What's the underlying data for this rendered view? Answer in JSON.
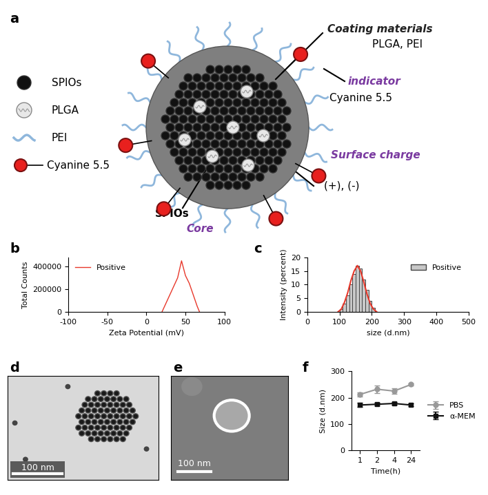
{
  "diagram": {
    "panel_label": "a",
    "legend": [
      {
        "label": "SPIOs"
      },
      {
        "label": "PLGA"
      },
      {
        "label": "PEI"
      },
      {
        "label": "Cyanine 5.5"
      }
    ],
    "annotations": [
      {
        "title": "Coating materials",
        "text": "PLGA, PEI"
      },
      {
        "title": "indicator",
        "text": "Cyanine 5.5"
      },
      {
        "title": "Surface charge",
        "text": "(+), (-)"
      },
      {
        "title": "Core",
        "text": "SPIOs"
      }
    ]
  },
  "chart_data": [
    {
      "panel_label": "b",
      "type": "line",
      "x_label": "Zeta Potential (mV)",
      "y_label": "Total Counts",
      "x": [
        20,
        30,
        40,
        45,
        50,
        55,
        60,
        65,
        68
      ],
      "series": [
        {
          "name": "Positive",
          "color": "#e8382b",
          "values": [
            0,
            150000,
            300000,
            450000,
            320000,
            250000,
            150000,
            50000,
            0
          ]
        }
      ],
      "xlim": [
        -100,
        100
      ],
      "xticks": [
        -100,
        -50,
        0,
        50,
        100
      ],
      "ylim": [
        0,
        480000
      ],
      "yticks": [
        0,
        200000,
        400000
      ],
      "legend": "upper left"
    },
    {
      "panel_label": "c",
      "type": "histogram",
      "x_label": "size (d.nm)",
      "y_label": "Intensity (percent)",
      "series": [
        {
          "name": "Positive",
          "type": "histogram",
          "color": "#c8c8c8",
          "bins": [
            100,
            110,
            120,
            130,
            140,
            150,
            160,
            170,
            180,
            190,
            200,
            210
          ],
          "counts": [
            1,
            3,
            6,
            10,
            14,
            17,
            16,
            12,
            8,
            4,
            1.5
          ]
        },
        {
          "type": "line",
          "color": "#e8382b",
          "x": [
            95,
            105,
            115,
            125,
            135,
            145,
            155,
            165,
            175,
            185,
            195,
            205,
            215
          ],
          "values": [
            0,
            1,
            3.5,
            7,
            11.5,
            15,
            17,
            15,
            11,
            6.5,
            3,
            1,
            0
          ]
        }
      ],
      "xlim": [
        0,
        500
      ],
      "xticks": [
        0,
        100,
        200,
        300,
        400,
        500
      ],
      "ylim": [
        0,
        20
      ],
      "yticks": [
        0,
        5,
        10,
        15,
        20
      ],
      "legend": "upper right"
    },
    {
      "panel_label": "f",
      "type": "line",
      "x_label": "Time(h)",
      "y_label": "Size (d.nm)",
      "categories": [
        "1",
        "2",
        "4",
        "24"
      ],
      "series": [
        {
          "name": "PBS",
          "color": "#999999",
          "marker": "circle",
          "values": [
            212,
            232,
            225,
            250
          ],
          "errors": [
            8,
            15,
            10,
            5
          ]
        },
        {
          "name": "α-MEM",
          "color": "#111111",
          "marker": "square",
          "values": [
            172,
            175,
            178,
            172
          ],
          "errors": [
            8,
            5,
            5,
            5
          ]
        }
      ],
      "ylim": [
        0,
        300
      ],
      "yticks": [
        0,
        100,
        200,
        300
      ],
      "legend": "center left"
    }
  ],
  "images": [
    {
      "panel_label": "d",
      "scale_bar": "100 nm"
    },
    {
      "panel_label": "e",
      "scale_bar": "100 nm"
    }
  ]
}
